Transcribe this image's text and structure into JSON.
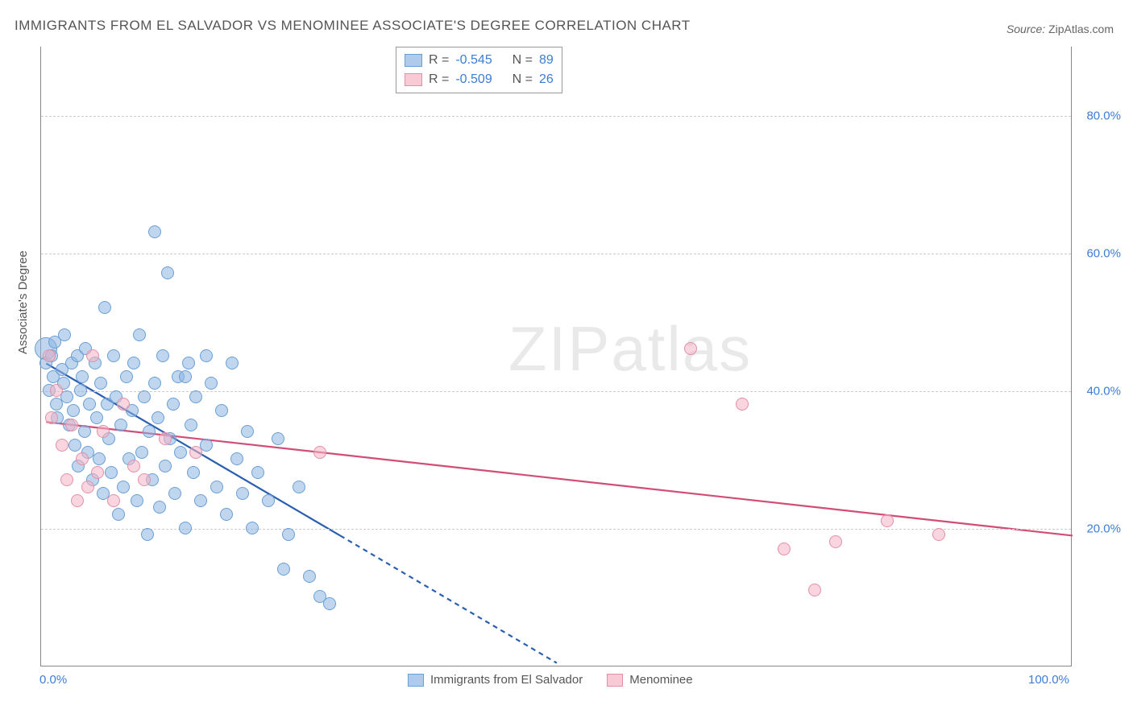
{
  "title": "IMMIGRANTS FROM EL SALVADOR VS MENOMINEE ASSOCIATE'S DEGREE CORRELATION CHART",
  "source_label": "Source:",
  "source_name": "ZipAtlas.com",
  "watermark": {
    "zip": "ZIP",
    "atlas": "atlas"
  },
  "y_axis_title": "Associate's Degree",
  "chart": {
    "type": "scatter",
    "xlim": [
      0,
      100
    ],
    "ylim": [
      0,
      90
    ],
    "x_ticks": [
      {
        "value": 0,
        "label": "0.0%"
      },
      {
        "value": 100,
        "label": "100.0%"
      }
    ],
    "y_ticks": [
      {
        "value": 20,
        "label": "20.0%"
      },
      {
        "value": 40,
        "label": "40.0%"
      },
      {
        "value": 60,
        "label": "60.0%"
      },
      {
        "value": 80,
        "label": "80.0%"
      }
    ],
    "background_color": "#ffffff",
    "grid_color": "#cccccc",
    "grid_dash": "4,4",
    "point_radius": 8,
    "point_radius_large": 14,
    "series": [
      {
        "name": "Immigrants from El Salvador",
        "color_fill": "rgba(141,180,226,0.55)",
        "color_stroke": "#6a9fd4",
        "regression": {
          "color": "#2a5fb0",
          "width": 2.2,
          "solid": {
            "x1": 0.5,
            "y1": 44,
            "x2": 29,
            "y2": 19
          },
          "dash": {
            "x1": 29,
            "y1": 19,
            "x2": 50,
            "y2": 0.5
          }
        },
        "stats": {
          "R_label": "R =",
          "R": "-0.545",
          "N_label": "N =",
          "N": "89"
        },
        "points": [
          {
            "x": 0.5,
            "y": 46,
            "r": 14
          },
          {
            "x": 0.5,
            "y": 44
          },
          {
            "x": 0.8,
            "y": 40
          },
          {
            "x": 1,
            "y": 45
          },
          {
            "x": 1.2,
            "y": 42
          },
          {
            "x": 1.3,
            "y": 47
          },
          {
            "x": 1.5,
            "y": 38
          },
          {
            "x": 1.6,
            "y": 36
          },
          {
            "x": 2,
            "y": 43
          },
          {
            "x": 2.2,
            "y": 41
          },
          {
            "x": 2.3,
            "y": 48
          },
          {
            "x": 2.5,
            "y": 39
          },
          {
            "x": 2.7,
            "y": 35
          },
          {
            "x": 3,
            "y": 44
          },
          {
            "x": 3.1,
            "y": 37
          },
          {
            "x": 3.3,
            "y": 32
          },
          {
            "x": 3.5,
            "y": 45
          },
          {
            "x": 3.6,
            "y": 29
          },
          {
            "x": 3.8,
            "y": 40
          },
          {
            "x": 4,
            "y": 42
          },
          {
            "x": 4.2,
            "y": 34
          },
          {
            "x": 4.3,
            "y": 46
          },
          {
            "x": 4.5,
            "y": 31
          },
          {
            "x": 4.7,
            "y": 38
          },
          {
            "x": 5,
            "y": 27
          },
          {
            "x": 5.2,
            "y": 44
          },
          {
            "x": 5.4,
            "y": 36
          },
          {
            "x": 5.6,
            "y": 30
          },
          {
            "x": 5.8,
            "y": 41
          },
          {
            "x": 6,
            "y": 25
          },
          {
            "x": 6.2,
            "y": 52
          },
          {
            "x": 6.4,
            "y": 38
          },
          {
            "x": 6.6,
            "y": 33
          },
          {
            "x": 6.8,
            "y": 28
          },
          {
            "x": 7,
            "y": 45
          },
          {
            "x": 7.3,
            "y": 39
          },
          {
            "x": 7.5,
            "y": 22
          },
          {
            "x": 7.7,
            "y": 35
          },
          {
            "x": 8,
            "y": 26
          },
          {
            "x": 8.3,
            "y": 42
          },
          {
            "x": 8.5,
            "y": 30
          },
          {
            "x": 8.8,
            "y": 37
          },
          {
            "x": 9,
            "y": 44
          },
          {
            "x": 9.3,
            "y": 24
          },
          {
            "x": 9.5,
            "y": 48
          },
          {
            "x": 9.8,
            "y": 31
          },
          {
            "x": 10,
            "y": 39
          },
          {
            "x": 10.3,
            "y": 19
          },
          {
            "x": 10.5,
            "y": 34
          },
          {
            "x": 10.8,
            "y": 27
          },
          {
            "x": 11,
            "y": 41
          },
          {
            "x": 11.3,
            "y": 36
          },
          {
            "x": 11.5,
            "y": 23
          },
          {
            "x": 11.8,
            "y": 45
          },
          {
            "x": 12,
            "y": 29
          },
          {
            "x": 12.3,
            "y": 57
          },
          {
            "x": 12.5,
            "y": 33
          },
          {
            "x": 12.8,
            "y": 38
          },
          {
            "x": 13,
            "y": 25
          },
          {
            "x": 13.3,
            "y": 42
          },
          {
            "x": 13.5,
            "y": 31
          },
          {
            "x": 11,
            "y": 63
          },
          {
            "x": 14,
            "y": 20
          },
          {
            "x": 14.3,
            "y": 44
          },
          {
            "x": 14.5,
            "y": 35
          },
          {
            "x": 14.8,
            "y": 28
          },
          {
            "x": 15,
            "y": 39
          },
          {
            "x": 15.5,
            "y": 24
          },
          {
            "x": 16,
            "y": 32
          },
          {
            "x": 16.5,
            "y": 41
          },
          {
            "x": 17,
            "y": 26
          },
          {
            "x": 17.5,
            "y": 37
          },
          {
            "x": 18,
            "y": 22
          },
          {
            "x": 18.5,
            "y": 44
          },
          {
            "x": 19,
            "y": 30
          },
          {
            "x": 19.5,
            "y": 25
          },
          {
            "x": 20,
            "y": 34
          },
          {
            "x": 20.5,
            "y": 20
          },
          {
            "x": 21,
            "y": 28
          },
          {
            "x": 22,
            "y": 24
          },
          {
            "x": 23,
            "y": 33
          },
          {
            "x": 23.5,
            "y": 14
          },
          {
            "x": 24,
            "y": 19
          },
          {
            "x": 25,
            "y": 26
          },
          {
            "x": 26,
            "y": 13
          },
          {
            "x": 27,
            "y": 10
          },
          {
            "x": 28,
            "y": 9
          },
          {
            "x": 14,
            "y": 42
          },
          {
            "x": 16,
            "y": 45
          }
        ]
      },
      {
        "name": "Menominee",
        "color_fill": "rgba(244,180,196,0.55)",
        "color_stroke": "#e38fa8",
        "regression": {
          "color": "#d14d76",
          "width": 2.2,
          "solid": {
            "x1": 0.5,
            "y1": 35.5,
            "x2": 100,
            "y2": 19
          }
        },
        "stats": {
          "R_label": "R =",
          "R": "-0.509",
          "N_label": "N =",
          "N": "26"
        },
        "points": [
          {
            "x": 0.8,
            "y": 45
          },
          {
            "x": 1,
            "y": 36
          },
          {
            "x": 1.5,
            "y": 40
          },
          {
            "x": 2,
            "y": 32
          },
          {
            "x": 2.5,
            "y": 27
          },
          {
            "x": 3,
            "y": 35
          },
          {
            "x": 3.5,
            "y": 24
          },
          {
            "x": 4,
            "y": 30
          },
          {
            "x": 4.5,
            "y": 26
          },
          {
            "x": 5,
            "y": 45
          },
          {
            "x": 5.5,
            "y": 28
          },
          {
            "x": 6,
            "y": 34
          },
          {
            "x": 7,
            "y": 24
          },
          {
            "x": 8,
            "y": 38
          },
          {
            "x": 9,
            "y": 29
          },
          {
            "x": 10,
            "y": 27
          },
          {
            "x": 12,
            "y": 33
          },
          {
            "x": 15,
            "y": 31
          },
          {
            "x": 27,
            "y": 31
          },
          {
            "x": 63,
            "y": 46
          },
          {
            "x": 68,
            "y": 38
          },
          {
            "x": 72,
            "y": 17
          },
          {
            "x": 75,
            "y": 11
          },
          {
            "x": 77,
            "y": 18
          },
          {
            "x": 82,
            "y": 21
          },
          {
            "x": 87,
            "y": 19
          }
        ]
      }
    ]
  },
  "bottom_legend": [
    {
      "series": 0,
      "label": "Immigrants from El Salvador"
    },
    {
      "series": 1,
      "label": "Menominee"
    }
  ]
}
